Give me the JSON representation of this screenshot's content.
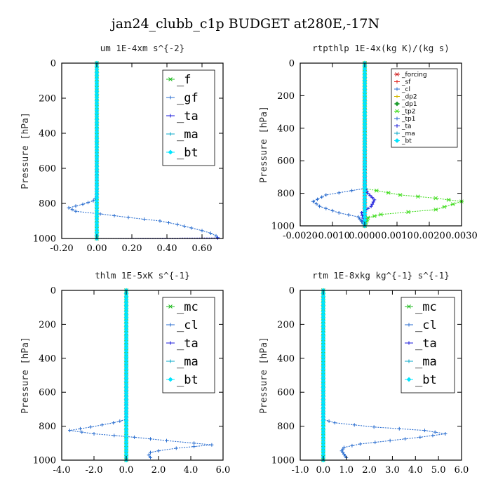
{
  "title": "jan24_clubb_c1p  BUDGET at280E,-17N",
  "colors": {
    "_f": "#22bb22",
    "_gf": "#2a6ed0",
    "_ta": "#1a1adb",
    "_ma": "#0aa9c9",
    "_bt": "#00e5ff",
    "_mc": "#22bb22",
    "_cl": "#2a6ed0",
    "_forcing": "#d12020",
    "_sf": "#e0201a",
    "_dp2": "#d4b800",
    "_dp1": "#1f9e2e",
    "_tp2": "#44dd22",
    "_tp1": "#2266cc"
  },
  "chart_data": [
    {
      "type": "line",
      "title": "um   1E-4xm  s^{-2}",
      "ylabel": "Pressure [hPa]",
      "xlim": [
        -0.2,
        0.72
      ],
      "ylim": [
        1000,
        0
      ],
      "xticks": [
        "-0.20",
        "0.00",
        "0.20",
        "0.40",
        "0.60"
      ],
      "xtick_values": [
        -0.2,
        0.0,
        0.2,
        0.4,
        0.6
      ],
      "yticks": [
        "0",
        "200",
        "400",
        "600",
        "800",
        "1000"
      ],
      "ytick_values": [
        0,
        200,
        400,
        600,
        800,
        1000
      ],
      "legend_position": "top-right",
      "legend_size": "large",
      "series": [
        {
          "name": "_f",
          "points": [
            [
              0,
              0
            ],
            [
              0,
              1000
            ]
          ]
        },
        {
          "name": "_gf",
          "points": [
            [
              0,
              0
            ],
            [
              0,
              760
            ],
            [
              -0.02,
              785
            ],
            [
              -0.08,
              805
            ],
            [
              -0.16,
              825
            ],
            [
              -0.12,
              845
            ],
            [
              0.02,
              860
            ],
            [
              0.18,
              880
            ],
            [
              0.36,
              900
            ],
            [
              0.46,
              920
            ],
            [
              0.54,
              940
            ],
            [
              0.6,
              955
            ],
            [
              0.65,
              970
            ],
            [
              0.68,
              985
            ],
            [
              0.69,
              995
            ]
          ]
        },
        {
          "name": "_ta",
          "points": [
            [
              0,
              0
            ],
            [
              0,
              1000
            ],
            [
              0.69,
              997
            ]
          ]
        },
        {
          "name": "_ma",
          "points": [
            [
              0,
              0
            ],
            [
              0,
              1000
            ]
          ]
        },
        {
          "name": "_bt",
          "points": [
            [
              0,
              0
            ],
            [
              0,
              1000
            ]
          ]
        }
      ]
    },
    {
      "type": "line",
      "title": "rtpthlp   1E-4x(kg K)/(kg s)",
      "ylabel": "Pressure [hPa]",
      "xlim": [
        -0.002,
        0.003
      ],
      "ylim": [
        1000,
        0
      ],
      "xticks": [
        "-0.0020",
        "-0.0010",
        "0.0000",
        "0.0010",
        "0.0020",
        "0.0030"
      ],
      "xtick_values": [
        -0.002,
        -0.001,
        0.0,
        0.001,
        0.002,
        0.003
      ],
      "yticks": [
        "0",
        "200",
        "400",
        "600",
        "800",
        "1000"
      ],
      "ytick_values": [
        0,
        200,
        400,
        600,
        800,
        1000
      ],
      "legend_position": "top-right",
      "legend_size": "small",
      "series": [
        {
          "name": "_forcing",
          "points": [
            [
              0,
              0
            ],
            [
              0,
              1000
            ]
          ]
        },
        {
          "name": "_sf",
          "points": [
            [
              0,
              0
            ],
            [
              0,
              1000
            ]
          ]
        },
        {
          "name": "_cl",
          "points": [
            [
              0,
              0
            ],
            [
              0,
              1000
            ]
          ]
        },
        {
          "name": "_dp2",
          "points": [
            [
              0,
              0
            ],
            [
              0,
              1000
            ]
          ]
        },
        {
          "name": "_dp1",
          "points": [
            [
              0,
              0
            ],
            [
              0,
              1000
            ]
          ]
        },
        {
          "name": "_tp2",
          "points": [
            [
              0,
              0
            ],
            [
              0,
              770
            ],
            [
              0.0011,
              810
            ],
            [
              0.0022,
              830
            ],
            [
              0.003,
              850
            ],
            [
              0.0022,
              900
            ],
            [
              0.0005,
              930
            ],
            [
              0.0001,
              950
            ],
            [
              0,
              1000
            ]
          ]
        },
        {
          "name": "_tp1",
          "points": [
            [
              0,
              0
            ],
            [
              0,
              770
            ],
            [
              -0.0012,
              810
            ],
            [
              -0.0016,
              850
            ],
            [
              -0.0014,
              880
            ],
            [
              -0.0008,
              920
            ],
            [
              -0.0002,
              945
            ],
            [
              0,
              1000
            ]
          ]
        },
        {
          "name": "_ta",
          "points": [
            [
              0,
              0
            ],
            [
              0,
              760
            ],
            [
              0.0001,
              800
            ],
            [
              0.0003,
              840
            ],
            [
              0.0002,
              880
            ],
            [
              -0.0001,
              920
            ],
            [
              0,
              1000
            ]
          ]
        },
        {
          "name": "_ma",
          "points": [
            [
              0,
              0
            ],
            [
              0,
              1000
            ]
          ]
        },
        {
          "name": "_bt",
          "points": [
            [
              0,
              0
            ],
            [
              0,
              1000
            ]
          ]
        }
      ]
    },
    {
      "type": "line",
      "title": "thlm   1E-5xK  s^{-1}",
      "ylabel": "Pressure [hPa]",
      "xlim": [
        -4.0,
        6.0
      ],
      "ylim": [
        1000,
        0
      ],
      "xticks": [
        "-4.0",
        "-2.0",
        "0.0",
        "2.0",
        "4.0",
        "6.0"
      ],
      "xtick_values": [
        -4,
        -2,
        0,
        2,
        4,
        6
      ],
      "yticks": [
        "0",
        "200",
        "400",
        "600",
        "800",
        "1000"
      ],
      "ytick_values": [
        0,
        200,
        400,
        600,
        800,
        1000
      ],
      "legend_position": "top-right",
      "legend_size": "large",
      "series": [
        {
          "name": "_mc",
          "points": [
            [
              0,
              0
            ],
            [
              0,
              1000
            ]
          ]
        },
        {
          "name": "_cl",
          "points": [
            [
              0,
              0
            ],
            [
              0,
              760
            ],
            [
              -0.8,
              780
            ],
            [
              -2.2,
              805
            ],
            [
              -3.5,
              825
            ],
            [
              -2.0,
              845
            ],
            [
              0.5,
              865
            ],
            [
              2.5,
              885
            ],
            [
              4.2,
              900
            ],
            [
              5.3,
              910
            ],
            [
              4.2,
              920
            ],
            [
              3.1,
              930
            ],
            [
              2.0,
              945
            ],
            [
              1.5,
              955
            ],
            [
              1.4,
              970
            ],
            [
              1.5,
              985
            ]
          ]
        },
        {
          "name": "_ta",
          "points": [
            [
              0,
              0
            ],
            [
              0,
              1000
            ]
          ]
        },
        {
          "name": "_ma",
          "points": [
            [
              0,
              0
            ],
            [
              0,
              1000
            ]
          ]
        },
        {
          "name": "_bt",
          "points": [
            [
              0,
              0
            ],
            [
              0,
              1000
            ]
          ]
        }
      ]
    },
    {
      "type": "line",
      "title": "rtm   1E-8xkg  kg^{-1}  s^{-1}",
      "ylabel": "Pressure [hPa]",
      "xlim": [
        -1.0,
        6.0
      ],
      "ylim": [
        1000,
        0
      ],
      "xticks": [
        "-1.0",
        "0.0",
        "1.0",
        "2.0",
        "3.0",
        "4.0",
        "5.0",
        "6.0"
      ],
      "xtick_values": [
        -1,
        0,
        1,
        2,
        3,
        4,
        5,
        6
      ],
      "yticks": [
        "0",
        "200",
        "400",
        "600",
        "800",
        "1000"
      ],
      "ytick_values": [
        0,
        200,
        400,
        600,
        800,
        1000
      ],
      "legend_position": "top-right",
      "legend_size": "large",
      "series": [
        {
          "name": "_mc",
          "points": [
            [
              0,
              0
            ],
            [
              0,
              1000
            ]
          ]
        },
        {
          "name": "_cl",
          "points": [
            [
              0,
              0
            ],
            [
              0,
              760
            ],
            [
              0.5,
              780
            ],
            [
              2.2,
              805
            ],
            [
              4.4,
              825
            ],
            [
              5.3,
              845
            ],
            [
              4.2,
              865
            ],
            [
              2.9,
              885
            ],
            [
              1.6,
              905
            ],
            [
              0.9,
              925
            ],
            [
              0.8,
              945
            ],
            [
              0.9,
              965
            ],
            [
              1.0,
              985
            ]
          ]
        },
        {
          "name": "_ta",
          "points": [
            [
              0,
              0
            ],
            [
              0,
              1000
            ]
          ]
        },
        {
          "name": "_ma",
          "points": [
            [
              0,
              0
            ],
            [
              0,
              1000
            ]
          ]
        },
        {
          "name": "_bt",
          "points": [
            [
              0,
              0
            ],
            [
              0,
              1000
            ]
          ]
        }
      ]
    }
  ]
}
